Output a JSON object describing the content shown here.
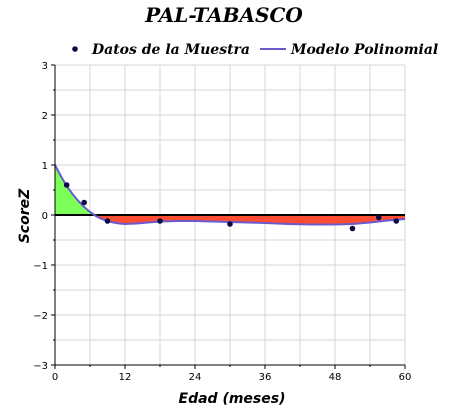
{
  "chart_data": {
    "type": "line",
    "title": "PAL-TABASCO",
    "xlabel": "Edad (meses)",
    "ylabel": "ScoreZ",
    "xlim": [
      0,
      60
    ],
    "ylim": [
      -3,
      3
    ],
    "x_ticks": [
      0,
      12,
      24,
      36,
      48,
      60
    ],
    "y_ticks": [
      -3,
      -2,
      -1,
      0,
      1,
      2,
      3
    ],
    "grid": true,
    "legend_position": "top",
    "series": [
      {
        "name": "Datos de la Muestra",
        "kind": "scatter",
        "color": "#0b0b4a",
        "points": [
          [
            2,
            0.6
          ],
          [
            5,
            0.25
          ],
          [
            9,
            -0.12
          ],
          [
            18,
            -0.12
          ],
          [
            30,
            -0.18
          ],
          [
            51,
            -0.27
          ],
          [
            55.5,
            -0.05
          ],
          [
            58.5,
            -0.12
          ]
        ]
      },
      {
        "name": "Modelo Polinomial",
        "kind": "line",
        "color": "#6a5acd",
        "points": [
          [
            0,
            1.0
          ],
          [
            1,
            0.78
          ],
          [
            2,
            0.58
          ],
          [
            3,
            0.42
          ],
          [
            4,
            0.28
          ],
          [
            5,
            0.16
          ],
          [
            6,
            0.06
          ],
          [
            7,
            -0.02
          ],
          [
            8,
            -0.08
          ],
          [
            9,
            -0.12
          ],
          [
            10,
            -0.15
          ],
          [
            11,
            -0.17
          ],
          [
            12,
            -0.18
          ],
          [
            14,
            -0.17
          ],
          [
            16,
            -0.15
          ],
          [
            18,
            -0.13
          ],
          [
            21,
            -0.12
          ],
          [
            24,
            -0.12
          ],
          [
            27,
            -0.13
          ],
          [
            30,
            -0.14
          ],
          [
            33,
            -0.15
          ],
          [
            36,
            -0.16
          ],
          [
            40,
            -0.18
          ],
          [
            44,
            -0.19
          ],
          [
            48,
            -0.19
          ],
          [
            51,
            -0.18
          ],
          [
            54,
            -0.15
          ],
          [
            57,
            -0.11
          ],
          [
            60,
            -0.08
          ]
        ]
      }
    ],
    "fill_positive_color": "#7dff5a",
    "fill_negative_color": "#ff4d33",
    "zero_line_color": "#000000"
  }
}
